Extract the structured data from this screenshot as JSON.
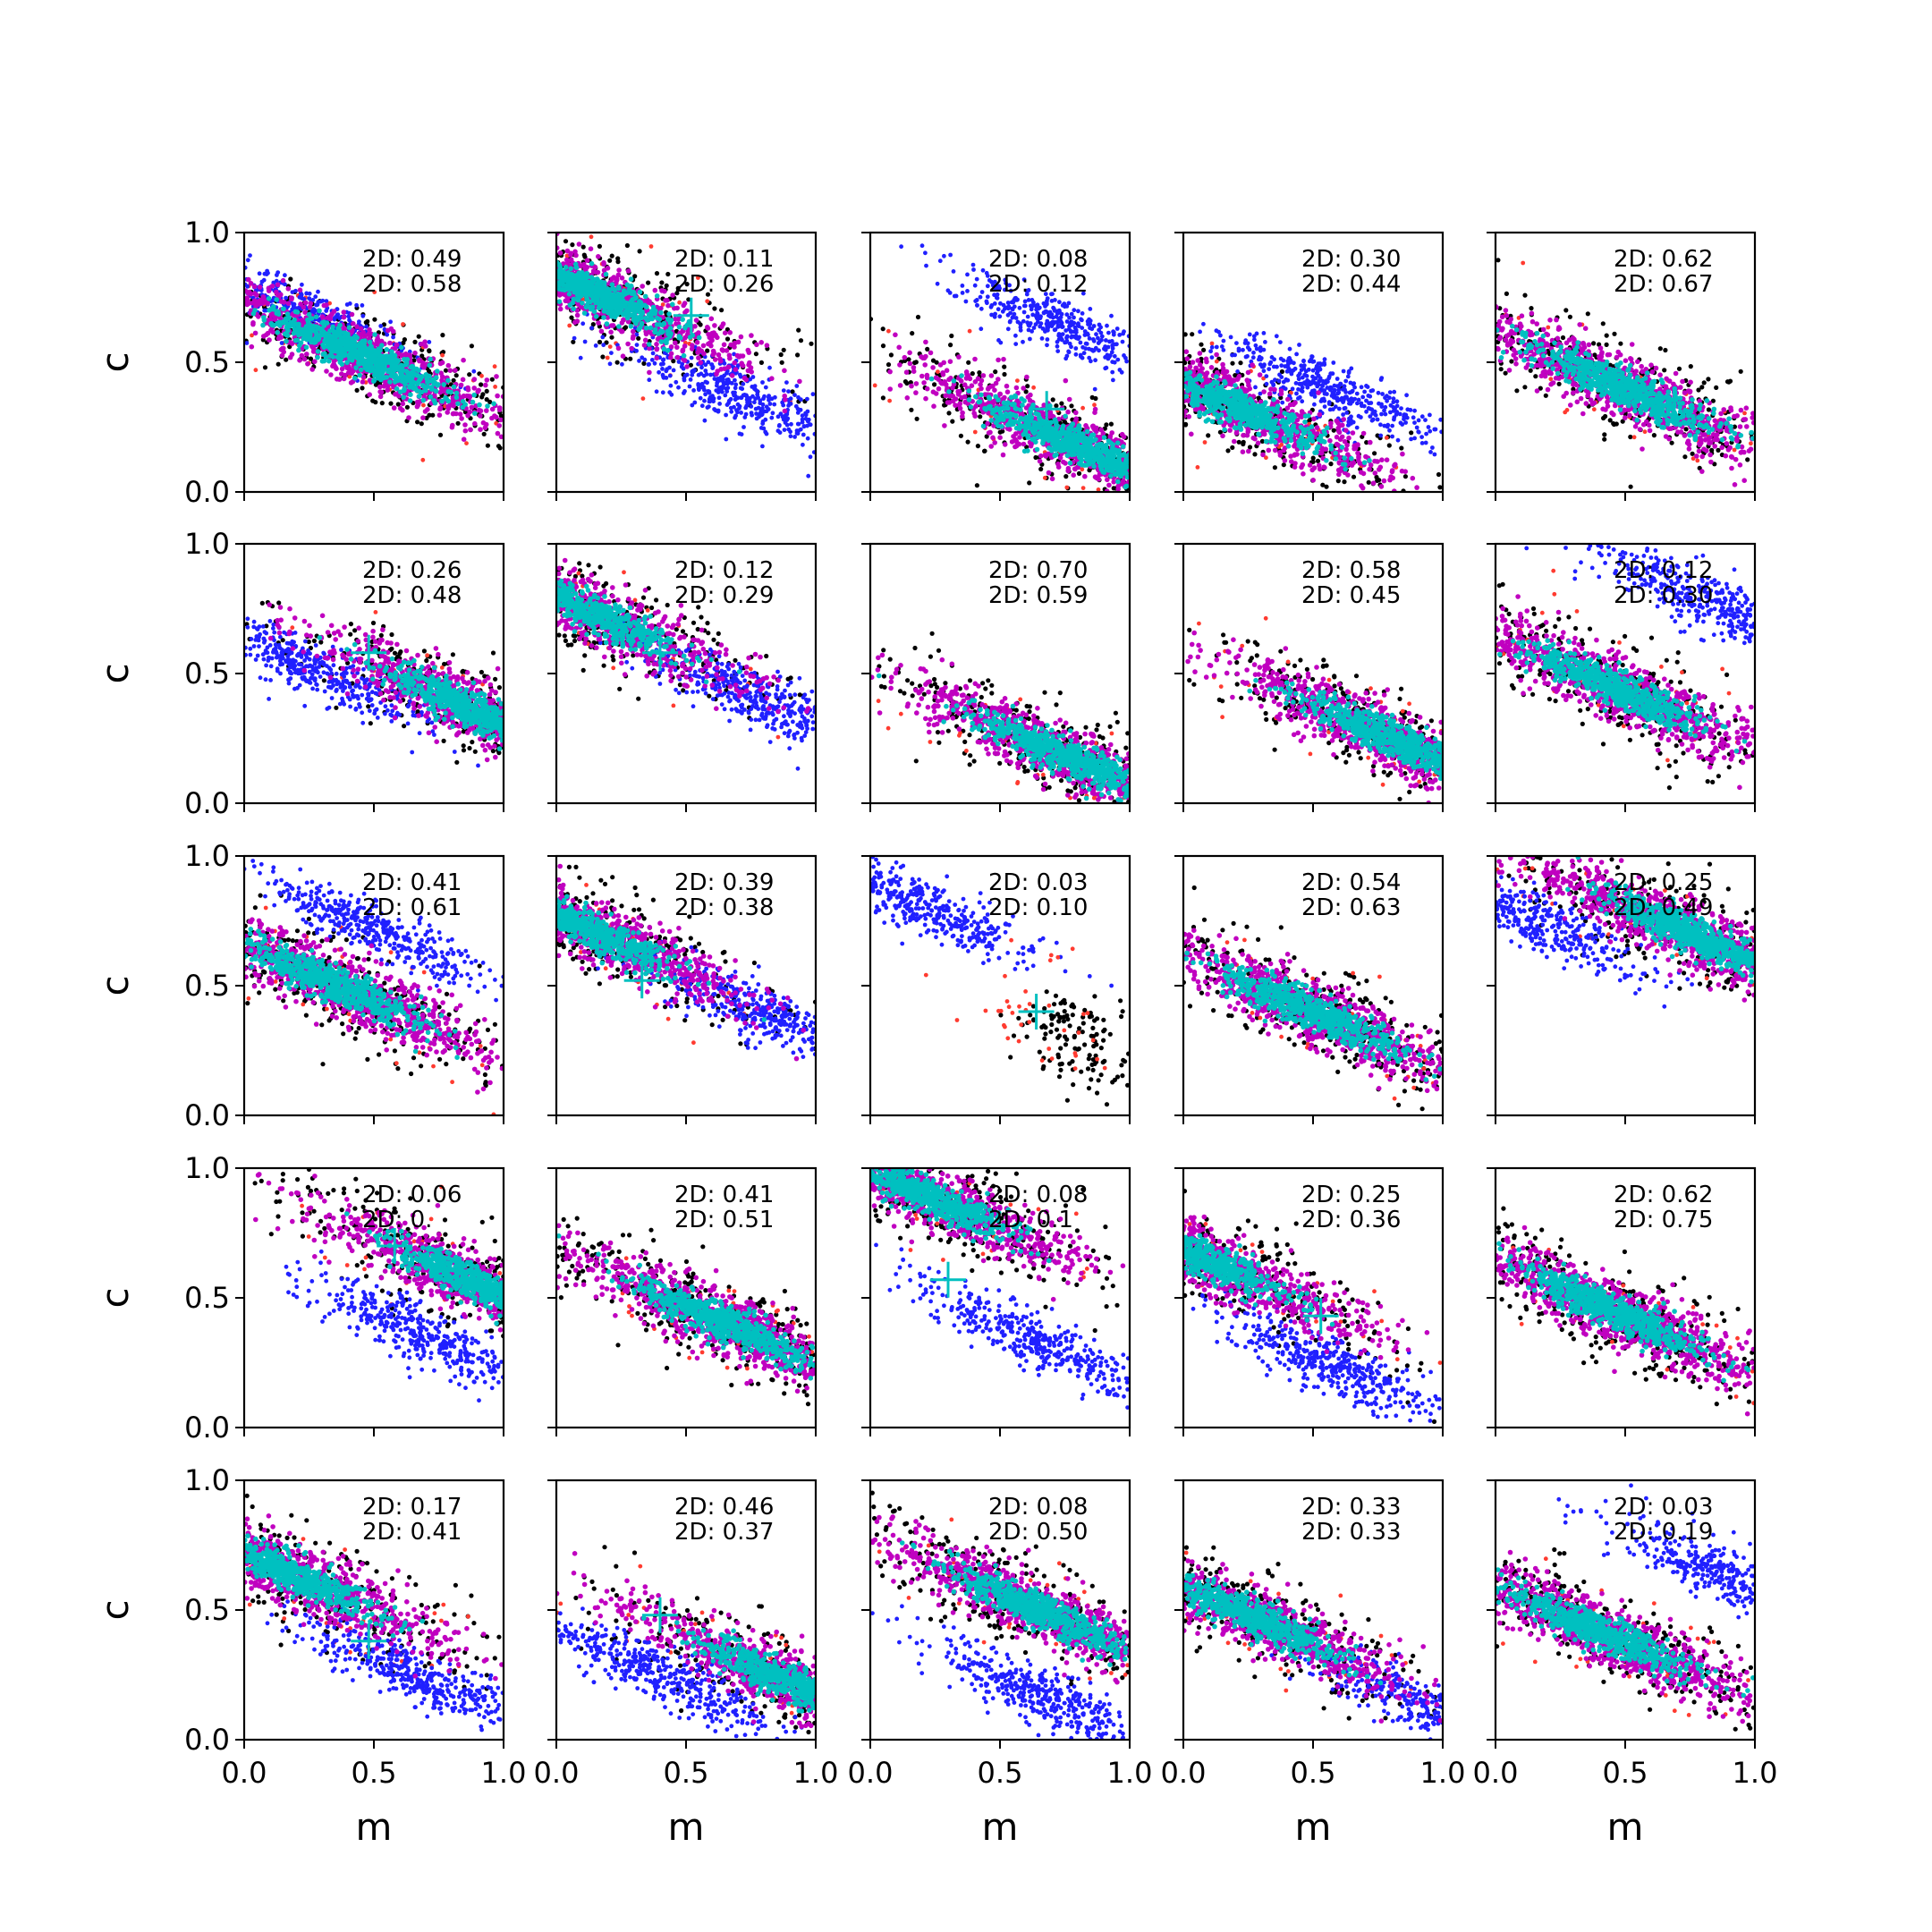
{
  "chart_data": {
    "type": "scatter",
    "layout": {
      "rows": 5,
      "cols": 5
    },
    "xlabel": "m",
    "ylabel": "c",
    "xlim": [
      0.0,
      1.0
    ],
    "ylim": [
      0.0,
      1.0
    ],
    "xticks": [
      "0.0",
      "0.5",
      "1.0"
    ],
    "yticks": [
      "0.0",
      "0.5",
      "1.0"
    ],
    "grid": false,
    "colors": {
      "black": "#000000",
      "red": "#ff3b30",
      "blue": "#2020ff",
      "magenta": "#c000c0",
      "cyan": "#00c0c0",
      "marker": "#00c0c0"
    },
    "panels": [
      {
        "label1": "2D: 0.49",
        "label2": "2D: 0.58",
        "center": [
          0.45,
          0.53
        ],
        "blue": [
          0.2,
          0.7
        ],
        "marker": null
      },
      {
        "label1": "2D: 0.11",
        "label2": "2D: 0.26",
        "center": [
          0.12,
          0.78
        ],
        "blue": [
          0.68,
          0.38
        ],
        "marker": [
          0.52,
          0.68
        ]
      },
      {
        "label1": "2D: 0.08",
        "label2": "2D: 0.12",
        "center": [
          0.8,
          0.18
        ],
        "blue": [
          0.72,
          0.65
        ],
        "marker": [
          0.68,
          0.32
        ]
      },
      {
        "label1": "2D: 0.30",
        "label2": "2D: 0.44",
        "center": [
          0.2,
          0.33
        ],
        "blue": [
          0.55,
          0.4
        ],
        "marker": null
      },
      {
        "label1": "2D: 0.62",
        "label2": "2D: 0.67",
        "center": [
          0.5,
          0.4
        ],
        "blue": null,
        "marker": null
      },
      {
        "label1": "2D: 0.26",
        "label2": "2D: 0.48",
        "center": [
          0.9,
          0.35
        ],
        "blue": [
          0.25,
          0.52
        ],
        "marker": [
          0.48,
          0.58
        ]
      },
      {
        "label1": "2D: 0.12",
        "label2": "2D: 0.29",
        "center": [
          0.1,
          0.75
        ],
        "blue": [
          0.78,
          0.4
        ],
        "marker": [
          0.4,
          0.58
        ]
      },
      {
        "label1": "2D: 0.70",
        "label2": "2D: 0.59",
        "center": [
          0.75,
          0.18
        ],
        "blue": null,
        "marker": null
      },
      {
        "label1": "2D: 0.58",
        "label2": "2D: 0.45",
        "center": [
          0.8,
          0.25
        ],
        "blue": null,
        "marker": null
      },
      {
        "label1": "2D: 0.12",
        "label2": "2D: 0.30",
        "center": [
          0.45,
          0.45
        ],
        "blue": [
          0.82,
          0.78
        ],
        "marker": null
      },
      {
        "label1": "2D: 0.41",
        "label2": "2D: 0.61",
        "center": [
          0.35,
          0.5
        ],
        "blue": [
          0.5,
          0.72
        ],
        "marker": null
      },
      {
        "label1": "2D: 0.39",
        "label2": "2D: 0.38",
        "center": [
          0.1,
          0.73
        ],
        "blue": [
          0.78,
          0.4
        ],
        "marker": [
          0.33,
          0.52
        ]
      },
      {
        "label1": "2D: 0.03",
        "label2": "2D: 0.10",
        "center": null,
        "blue": [
          0.22,
          0.8
        ],
        "marker": [
          0.64,
          0.4
        ]
      },
      {
        "label1": "2D: 0.54",
        "label2": "2D: 0.63",
        "center": [
          0.5,
          0.4
        ],
        "blue": null,
        "marker": null
      },
      {
        "label1": "2D: 0.25",
        "label2": "2D: 0.49",
        "center": [
          0.75,
          0.7
        ],
        "blue": [
          0.15,
          0.75
        ],
        "marker": null
      },
      {
        "label1": "2D: 0.06",
        "label2": "2D: 0.",
        "center": [
          0.9,
          0.55
        ],
        "blue": [
          0.7,
          0.35
        ],
        "marker": [
          0.58,
          0.7
        ]
      },
      {
        "label1": "2D: 0.41",
        "label2": "2D: 0.51",
        "center": [
          0.65,
          0.4
        ],
        "blue": null,
        "marker": null
      },
      {
        "label1": "2D: 0.08",
        "label2": "2D: 0.1",
        "center": [
          0.2,
          0.9
        ],
        "blue": [
          0.6,
          0.35
        ],
        "marker": [
          0.3,
          0.57
        ]
      },
      {
        "label1": "2D: 0.25",
        "label2": "2D: 0.36",
        "center": [
          0.08,
          0.65
        ],
        "blue": [
          0.55,
          0.25
        ],
        "marker": [
          0.53,
          0.43
        ]
      },
      {
        "label1": "2D: 0.62",
        "label2": "2D: 0.75",
        "center": [
          0.45,
          0.45
        ],
        "blue": null,
        "marker": null
      },
      {
        "label1": "2D: 0.17",
        "label2": "2D: 0.41",
        "center": [
          0.15,
          0.65
        ],
        "blue": [
          0.65,
          0.25
        ],
        "marker": [
          0.48,
          0.38
        ]
      },
      {
        "label1": "2D: 0.46",
        "label2": "2D: 0.37",
        "center": [
          0.9,
          0.22
        ],
        "blue": [
          0.4,
          0.25
        ],
        "marker": [
          0.4,
          0.48
        ]
      },
      {
        "label1": "2D: 0.08",
        "label2": "2D: 0.50",
        "center": [
          0.65,
          0.5
        ],
        "blue": [
          0.65,
          0.18
        ],
        "marker": null
      },
      {
        "label1": "2D: 0.33",
        "label2": "2D: 0.33",
        "center": [
          0.25,
          0.48
        ],
        "blue": [
          0.95,
          0.12
        ],
        "marker": null
      },
      {
        "label1": "2D: 0.03",
        "label2": "2D: 0.19",
        "center": [
          0.4,
          0.42
        ],
        "blue": [
          0.9,
          0.62
        ],
        "marker": null
      }
    ]
  }
}
